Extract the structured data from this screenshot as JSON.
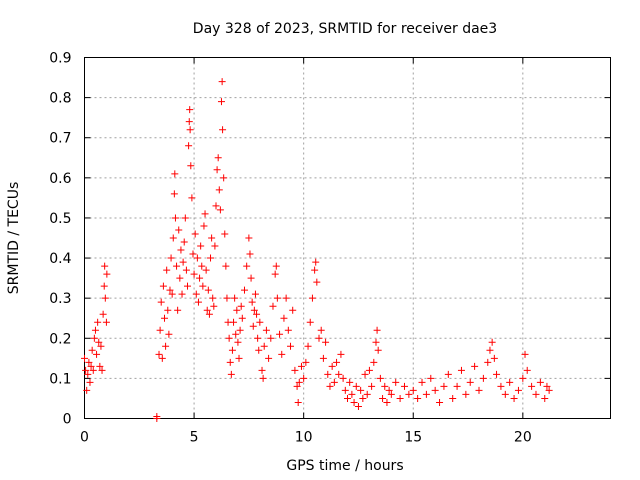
{
  "chart_data": {
    "type": "scatter",
    "title": "Day 328 of 2023, SRMTID for receiver dae3",
    "xlabel": "GPS time / hours",
    "ylabel": "SRMTID / TECUs",
    "xlim": [
      0,
      24
    ],
    "ylim": [
      0,
      0.9
    ],
    "xticks": [
      0,
      5,
      10,
      15,
      20
    ],
    "xtick_labels": [
      "0",
      "5",
      "10",
      "15",
      "20"
    ],
    "yticks": [
      0,
      0.1,
      0.2,
      0.3,
      0.4,
      0.5,
      0.6,
      0.7,
      0.8,
      0.9
    ],
    "ytick_labels": [
      "0",
      "0.1",
      "0.2",
      "0.3",
      "0.4",
      "0.5",
      "0.6",
      "0.7",
      "0.8",
      "0.9"
    ],
    "grid": true,
    "marker": "+",
    "color": "#ff0000",
    "series": [
      {
        "name": "SRMTID",
        "points": [
          [
            0.0,
            0.15
          ],
          [
            0.05,
            0.12
          ],
          [
            0.1,
            0.07
          ],
          [
            0.15,
            0.11
          ],
          [
            0.2,
            0.14
          ],
          [
            0.25,
            0.09
          ],
          [
            0.3,
            0.13
          ],
          [
            0.35,
            0.17
          ],
          [
            0.4,
            0.12
          ],
          [
            0.45,
            0.2
          ],
          [
            0.5,
            0.22
          ],
          [
            0.55,
            0.16
          ],
          [
            0.6,
            0.24
          ],
          [
            0.65,
            0.19
          ],
          [
            0.7,
            0.13
          ],
          [
            0.75,
            0.18
          ],
          [
            0.8,
            0.12
          ],
          [
            0.85,
            0.26
          ],
          [
            0.9,
            0.33
          ],
          [
            0.92,
            0.38
          ],
          [
            0.95,
            0.3
          ],
          [
            1.0,
            0.24
          ],
          [
            1.02,
            0.36
          ],
          [
            3.3,
            0.0
          ],
          [
            3.3,
            0.005
          ],
          [
            3.4,
            0.16
          ],
          [
            3.45,
            0.22
          ],
          [
            3.5,
            0.29
          ],
          [
            3.55,
            0.15
          ],
          [
            3.6,
            0.33
          ],
          [
            3.65,
            0.25
          ],
          [
            3.7,
            0.18
          ],
          [
            3.75,
            0.37
          ],
          [
            3.8,
            0.27
          ],
          [
            3.85,
            0.21
          ],
          [
            3.9,
            0.32
          ],
          [
            3.95,
            0.4
          ],
          [
            4.0,
            0.31
          ],
          [
            4.05,
            0.45
          ],
          [
            4.1,
            0.56
          ],
          [
            4.12,
            0.61
          ],
          [
            4.15,
            0.5
          ],
          [
            4.2,
            0.38
          ],
          [
            4.25,
            0.27
          ],
          [
            4.3,
            0.47
          ],
          [
            4.35,
            0.35
          ],
          [
            4.4,
            0.42
          ],
          [
            4.45,
            0.31
          ],
          [
            4.5,
            0.39
          ],
          [
            4.55,
            0.44
          ],
          [
            4.6,
            0.5
          ],
          [
            4.65,
            0.37
          ],
          [
            4.7,
            0.33
          ],
          [
            4.75,
            0.68
          ],
          [
            4.78,
            0.74
          ],
          [
            4.8,
            0.77
          ],
          [
            4.82,
            0.72
          ],
          [
            4.85,
            0.63
          ],
          [
            4.9,
            0.55
          ],
          [
            4.95,
            0.41
          ],
          [
            5.0,
            0.36
          ],
          [
            5.05,
            0.46
          ],
          [
            5.1,
            0.31
          ],
          [
            5.15,
            0.4
          ],
          [
            5.2,
            0.29
          ],
          [
            5.25,
            0.35
          ],
          [
            5.3,
            0.43
          ],
          [
            5.35,
            0.38
          ],
          [
            5.4,
            0.33
          ],
          [
            5.45,
            0.48
          ],
          [
            5.5,
            0.51
          ],
          [
            5.55,
            0.37
          ],
          [
            5.6,
            0.27
          ],
          [
            5.65,
            0.32
          ],
          [
            5.7,
            0.26
          ],
          [
            5.75,
            0.4
          ],
          [
            5.8,
            0.45
          ],
          [
            5.85,
            0.3
          ],
          [
            5.9,
            0.28
          ],
          [
            5.95,
            0.43
          ],
          [
            6.0,
            0.53
          ],
          [
            6.05,
            0.62
          ],
          [
            6.1,
            0.65
          ],
          [
            6.15,
            0.57
          ],
          [
            6.2,
            0.52
          ],
          [
            6.25,
            0.79
          ],
          [
            6.28,
            0.84
          ],
          [
            6.3,
            0.72
          ],
          [
            6.35,
            0.6
          ],
          [
            6.4,
            0.46
          ],
          [
            6.45,
            0.38
          ],
          [
            6.5,
            0.3
          ],
          [
            6.55,
            0.24
          ],
          [
            6.6,
            0.2
          ],
          [
            6.65,
            0.14
          ],
          [
            6.7,
            0.11
          ],
          [
            6.75,
            0.17
          ],
          [
            6.8,
            0.24
          ],
          [
            6.85,
            0.3
          ],
          [
            6.9,
            0.21
          ],
          [
            6.95,
            0.27
          ],
          [
            7.0,
            0.19
          ],
          [
            7.05,
            0.15
          ],
          [
            7.1,
            0.22
          ],
          [
            7.15,
            0.28
          ],
          [
            7.2,
            0.25
          ],
          [
            7.3,
            0.32
          ],
          [
            7.4,
            0.38
          ],
          [
            7.5,
            0.45
          ],
          [
            7.55,
            0.41
          ],
          [
            7.6,
            0.35
          ],
          [
            7.65,
            0.29
          ],
          [
            7.7,
            0.23
          ],
          [
            7.75,
            0.27
          ],
          [
            7.8,
            0.31
          ],
          [
            7.85,
            0.26
          ],
          [
            7.9,
            0.2
          ],
          [
            7.95,
            0.17
          ],
          [
            8.0,
            0.24
          ],
          [
            8.1,
            0.12
          ],
          [
            8.15,
            0.1
          ],
          [
            8.2,
            0.18
          ],
          [
            8.3,
            0.22
          ],
          [
            8.4,
            0.15
          ],
          [
            8.5,
            0.2
          ],
          [
            8.6,
            0.28
          ],
          [
            8.7,
            0.36
          ],
          [
            8.75,
            0.38
          ],
          [
            8.8,
            0.3
          ],
          [
            8.9,
            0.21
          ],
          [
            9.0,
            0.16
          ],
          [
            9.1,
            0.25
          ],
          [
            9.2,
            0.3
          ],
          [
            9.3,
            0.22
          ],
          [
            9.4,
            0.18
          ],
          [
            9.5,
            0.27
          ],
          [
            9.6,
            0.12
          ],
          [
            9.7,
            0.08
          ],
          [
            9.75,
            0.04
          ],
          [
            9.8,
            0.09
          ],
          [
            9.9,
            0.13
          ],
          [
            10.0,
            0.1
          ],
          [
            10.1,
            0.14
          ],
          [
            10.2,
            0.18
          ],
          [
            10.3,
            0.24
          ],
          [
            10.4,
            0.3
          ],
          [
            10.5,
            0.37
          ],
          [
            10.55,
            0.39
          ],
          [
            10.6,
            0.34
          ],
          [
            10.7,
            0.2
          ],
          [
            10.8,
            0.22
          ],
          [
            10.9,
            0.15
          ],
          [
            11.0,
            0.19
          ],
          [
            11.1,
            0.11
          ],
          [
            11.2,
            0.08
          ],
          [
            11.3,
            0.13
          ],
          [
            11.4,
            0.09
          ],
          [
            11.5,
            0.14
          ],
          [
            11.6,
            0.11
          ],
          [
            11.7,
            0.16
          ],
          [
            11.8,
            0.1
          ],
          [
            11.9,
            0.07
          ],
          [
            12.0,
            0.05
          ],
          [
            12.1,
            0.09
          ],
          [
            12.2,
            0.06
          ],
          [
            12.3,
            0.04
          ],
          [
            12.4,
            0.08
          ],
          [
            12.5,
            0.03
          ],
          [
            12.6,
            0.07
          ],
          [
            12.7,
            0.05
          ],
          [
            12.8,
            0.11
          ],
          [
            12.9,
            0.06
          ],
          [
            13.0,
            0.12
          ],
          [
            13.1,
            0.08
          ],
          [
            13.2,
            0.14
          ],
          [
            13.3,
            0.19
          ],
          [
            13.35,
            0.22
          ],
          [
            13.4,
            0.17
          ],
          [
            13.5,
            0.1
          ],
          [
            13.6,
            0.05
          ],
          [
            13.7,
            0.08
          ],
          [
            13.8,
            0.04
          ],
          [
            13.9,
            0.07
          ],
          [
            14.0,
            0.06
          ],
          [
            14.2,
            0.09
          ],
          [
            14.4,
            0.05
          ],
          [
            14.6,
            0.08
          ],
          [
            14.8,
            0.06
          ],
          [
            15.0,
            0.07
          ],
          [
            15.2,
            0.05
          ],
          [
            15.4,
            0.09
          ],
          [
            15.6,
            0.06
          ],
          [
            15.8,
            0.1
          ],
          [
            16.0,
            0.07
          ],
          [
            16.2,
            0.04
          ],
          [
            16.4,
            0.08
          ],
          [
            16.6,
            0.11
          ],
          [
            16.8,
            0.05
          ],
          [
            17.0,
            0.08
          ],
          [
            17.2,
            0.12
          ],
          [
            17.4,
            0.06
          ],
          [
            17.6,
            0.09
          ],
          [
            17.8,
            0.13
          ],
          [
            18.0,
            0.07
          ],
          [
            18.2,
            0.1
          ],
          [
            18.4,
            0.14
          ],
          [
            18.5,
            0.17
          ],
          [
            18.6,
            0.19
          ],
          [
            18.7,
            0.15
          ],
          [
            18.8,
            0.11
          ],
          [
            19.0,
            0.08
          ],
          [
            19.2,
            0.06
          ],
          [
            19.4,
            0.09
          ],
          [
            19.6,
            0.05
          ],
          [
            19.8,
            0.07
          ],
          [
            20.0,
            0.1
          ],
          [
            20.1,
            0.16
          ],
          [
            20.2,
            0.12
          ],
          [
            20.4,
            0.08
          ],
          [
            20.6,
            0.06
          ],
          [
            20.8,
            0.09
          ],
          [
            21.0,
            0.05
          ],
          [
            21.1,
            0.08
          ],
          [
            21.2,
            0.07
          ]
        ]
      }
    ]
  }
}
